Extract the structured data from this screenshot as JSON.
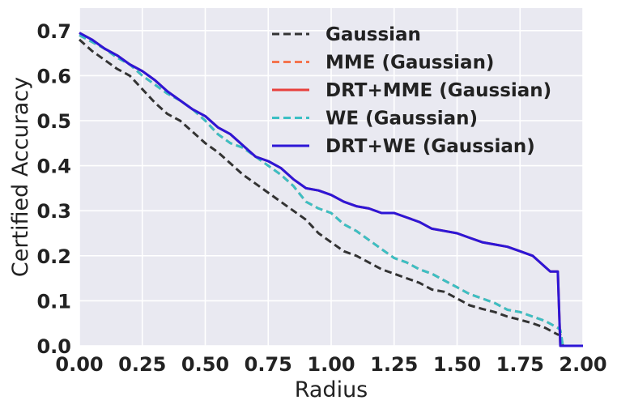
{
  "chart_data": {
    "type": "line",
    "title": "",
    "xlabel": "Radius",
    "ylabel": "Certified Accuracy",
    "xlim": [
      0.0,
      2.0
    ],
    "ylim": [
      0.0,
      0.75
    ],
    "x_ticks": [
      "0.00",
      "0.25",
      "0.50",
      "0.75",
      "1.00",
      "1.25",
      "1.50",
      "1.75",
      "2.00"
    ],
    "x_tick_values": [
      0.0,
      0.25,
      0.5,
      0.75,
      1.0,
      1.25,
      1.5,
      1.75,
      2.0
    ],
    "y_ticks": [
      "0.0",
      "0.1",
      "0.2",
      "0.3",
      "0.4",
      "0.5",
      "0.6",
      "0.7"
    ],
    "y_tick_values": [
      0.0,
      0.1,
      0.2,
      0.3,
      0.4,
      0.5,
      0.6,
      0.7
    ],
    "grid": true,
    "background": "#e9e9f1",
    "legend_position": "top-right",
    "series": [
      {
        "name": "Gaussian",
        "color": "#333333",
        "dash": "dashed",
        "x": [
          0.0,
          0.05,
          0.1,
          0.15,
          0.2,
          0.25,
          0.3,
          0.35,
          0.4,
          0.45,
          0.5,
          0.55,
          0.6,
          0.65,
          0.7,
          0.75,
          0.8,
          0.85,
          0.9,
          0.95,
          1.0,
          1.05,
          1.1,
          1.15,
          1.2,
          1.25,
          1.3,
          1.35,
          1.4,
          1.45,
          1.5,
          1.55,
          1.6,
          1.65,
          1.7,
          1.75,
          1.8,
          1.85,
          1.9,
          1.91,
          1.92,
          2.0
        ],
        "y": [
          0.68,
          0.655,
          0.635,
          0.615,
          0.6,
          0.57,
          0.54,
          0.515,
          0.5,
          0.475,
          0.45,
          0.43,
          0.405,
          0.38,
          0.36,
          0.34,
          0.32,
          0.3,
          0.28,
          0.25,
          0.23,
          0.21,
          0.2,
          0.185,
          0.17,
          0.16,
          0.15,
          0.14,
          0.125,
          0.12,
          0.105,
          0.09,
          0.082,
          0.075,
          0.065,
          0.058,
          0.05,
          0.04,
          0.025,
          0.025,
          0.0,
          0.0
        ]
      },
      {
        "name": "MME (Gaussian)",
        "color": "#f4744e",
        "dash": "dashed",
        "x": [
          0.0,
          0.05,
          0.1,
          0.15,
          0.2,
          0.25,
          0.3,
          0.35,
          0.4,
          0.45,
          0.5,
          0.55,
          0.6,
          0.65,
          0.7,
          0.75,
          0.8,
          0.85,
          0.9,
          0.95,
          1.0,
          1.05,
          1.1,
          1.15,
          1.2,
          1.25,
          1.3,
          1.35,
          1.4,
          1.45,
          1.5,
          1.55,
          1.6,
          1.65,
          1.7,
          1.75,
          1.8,
          1.85,
          1.9,
          1.91,
          1.92,
          2.0
        ],
        "y": [
          0.69,
          0.675,
          0.66,
          0.64,
          0.625,
          0.6,
          0.58,
          0.56,
          0.545,
          0.525,
          0.5,
          0.47,
          0.45,
          0.44,
          0.42,
          0.4,
          0.38,
          0.355,
          0.32,
          0.305,
          0.295,
          0.27,
          0.255,
          0.235,
          0.215,
          0.195,
          0.185,
          0.17,
          0.16,
          0.145,
          0.13,
          0.115,
          0.105,
          0.095,
          0.08,
          0.075,
          0.065,
          0.055,
          0.04,
          0.035,
          0.0,
          0.0
        ]
      },
      {
        "name": "DRT+MME (Gaussian)",
        "color": "#e8403c",
        "dash": "solid",
        "x": [
          0.0,
          0.05,
          0.1,
          0.15,
          0.2,
          0.25,
          0.3,
          0.35,
          0.4,
          0.45,
          0.5,
          0.55,
          0.6,
          0.65,
          0.7,
          0.75,
          0.8,
          0.85,
          0.9,
          0.95,
          1.0,
          1.05,
          1.1,
          1.15,
          1.2,
          1.25,
          1.3,
          1.35,
          1.4,
          1.45,
          1.5,
          1.55,
          1.6,
          1.65,
          1.7,
          1.75,
          1.8,
          1.85,
          1.87,
          1.89,
          1.9,
          1.91,
          2.0
        ],
        "y": [
          0.695,
          0.68,
          0.66,
          0.645,
          0.625,
          0.61,
          0.59,
          0.565,
          0.545,
          0.525,
          0.51,
          0.485,
          0.47,
          0.445,
          0.42,
          0.41,
          0.395,
          0.37,
          0.35,
          0.345,
          0.335,
          0.32,
          0.31,
          0.305,
          0.295,
          0.295,
          0.285,
          0.275,
          0.26,
          0.255,
          0.25,
          0.24,
          0.23,
          0.225,
          0.22,
          0.21,
          0.2,
          0.175,
          0.165,
          0.165,
          0.165,
          0.0,
          0.0
        ]
      },
      {
        "name": "WE (Gaussian)",
        "color": "#3bbfc4",
        "dash": "dashed",
        "x": [
          0.0,
          0.05,
          0.1,
          0.15,
          0.2,
          0.25,
          0.3,
          0.35,
          0.4,
          0.45,
          0.5,
          0.55,
          0.6,
          0.65,
          0.7,
          0.75,
          0.8,
          0.85,
          0.9,
          0.95,
          1.0,
          1.05,
          1.1,
          1.15,
          1.2,
          1.25,
          1.3,
          1.35,
          1.4,
          1.45,
          1.5,
          1.55,
          1.6,
          1.65,
          1.7,
          1.75,
          1.8,
          1.85,
          1.9,
          1.91,
          1.92,
          2.0
        ],
        "y": [
          0.69,
          0.675,
          0.66,
          0.64,
          0.625,
          0.6,
          0.58,
          0.56,
          0.545,
          0.525,
          0.5,
          0.47,
          0.45,
          0.44,
          0.42,
          0.4,
          0.38,
          0.355,
          0.32,
          0.305,
          0.295,
          0.27,
          0.255,
          0.235,
          0.215,
          0.195,
          0.185,
          0.17,
          0.16,
          0.145,
          0.13,
          0.115,
          0.105,
          0.095,
          0.08,
          0.075,
          0.065,
          0.055,
          0.04,
          0.035,
          0.0,
          0.0
        ]
      },
      {
        "name": "DRT+WE (Gaussian)",
        "color": "#2d16d6",
        "dash": "solid",
        "x": [
          0.0,
          0.05,
          0.1,
          0.15,
          0.2,
          0.25,
          0.3,
          0.35,
          0.4,
          0.45,
          0.5,
          0.55,
          0.6,
          0.65,
          0.7,
          0.75,
          0.8,
          0.85,
          0.9,
          0.95,
          1.0,
          1.05,
          1.1,
          1.15,
          1.2,
          1.25,
          1.3,
          1.35,
          1.4,
          1.45,
          1.5,
          1.55,
          1.6,
          1.65,
          1.7,
          1.75,
          1.8,
          1.85,
          1.87,
          1.89,
          1.9,
          1.91,
          2.0
        ],
        "y": [
          0.695,
          0.68,
          0.66,
          0.645,
          0.625,
          0.61,
          0.59,
          0.565,
          0.545,
          0.525,
          0.51,
          0.485,
          0.47,
          0.445,
          0.42,
          0.41,
          0.395,
          0.37,
          0.35,
          0.345,
          0.335,
          0.32,
          0.31,
          0.305,
          0.295,
          0.295,
          0.285,
          0.275,
          0.26,
          0.255,
          0.25,
          0.24,
          0.23,
          0.225,
          0.22,
          0.21,
          0.2,
          0.175,
          0.165,
          0.165,
          0.165,
          0.0,
          0.0
        ]
      }
    ]
  }
}
